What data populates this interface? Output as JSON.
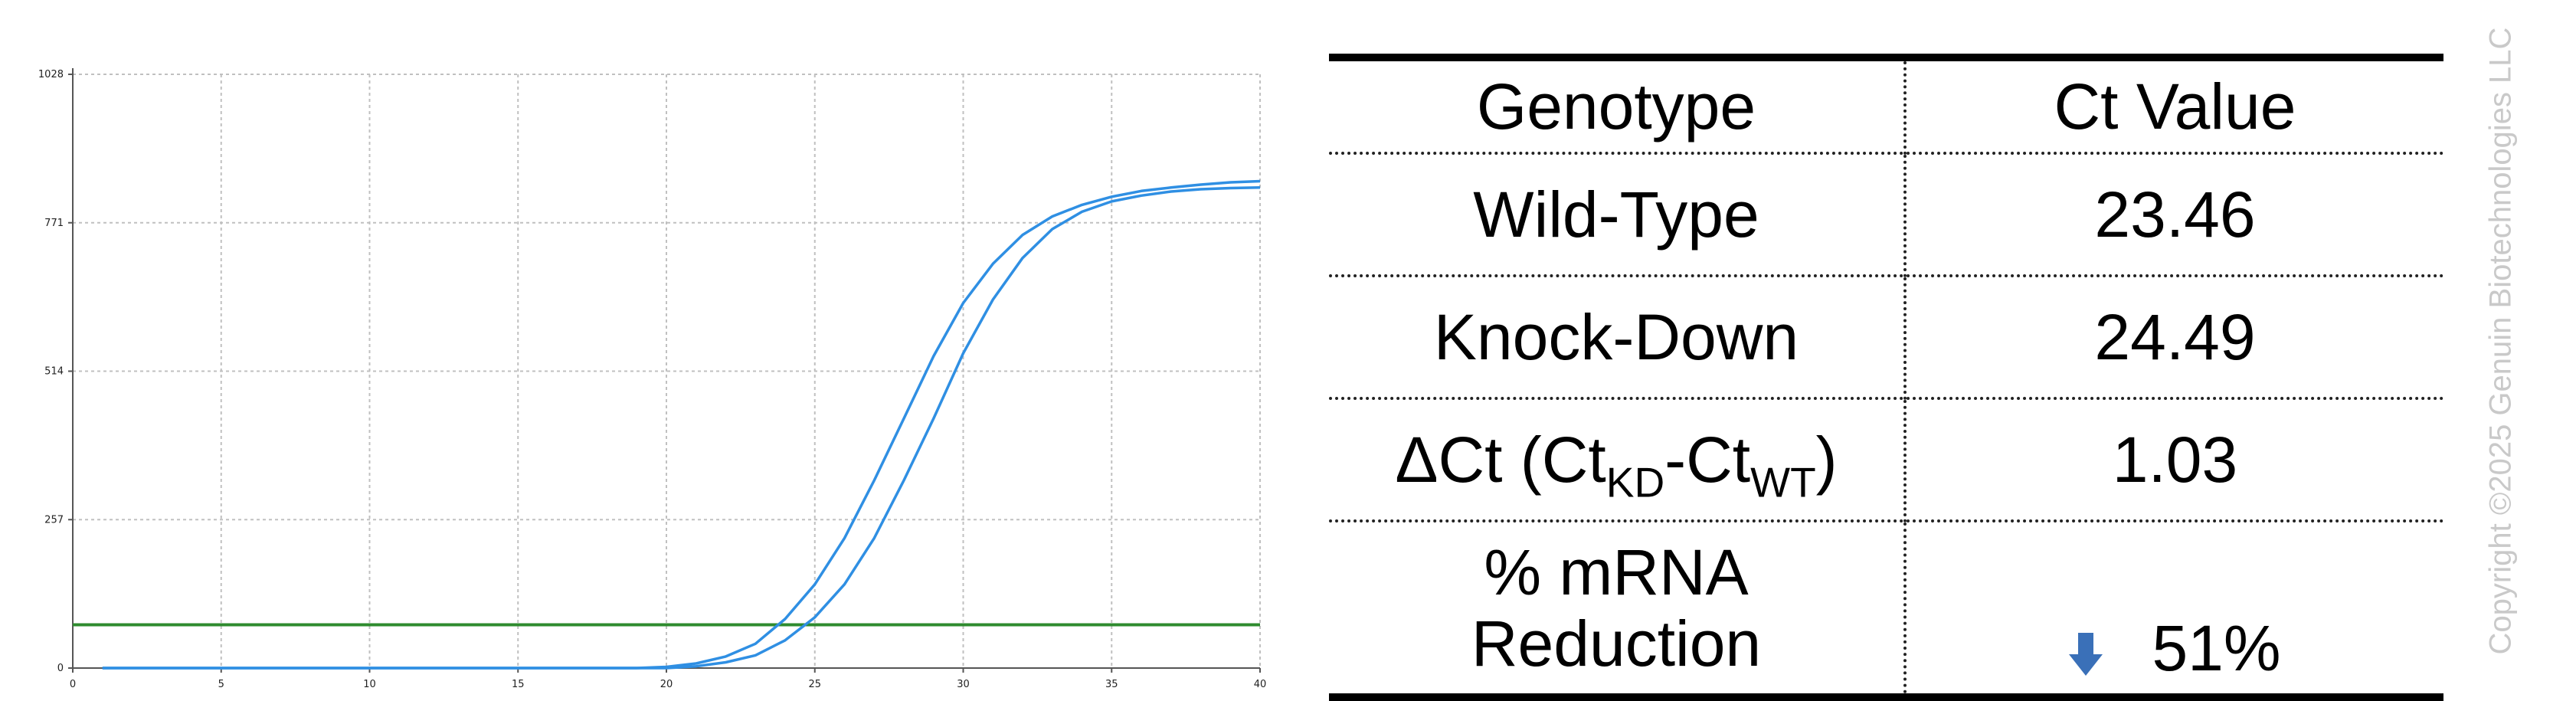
{
  "chart_data": {
    "type": "line",
    "title": "",
    "xlabel": "",
    "ylabel": "",
    "xlim": [
      0,
      40
    ],
    "ylim": [
      0,
      1028
    ],
    "x_ticks": [
      0,
      5,
      10,
      15,
      20,
      25,
      30,
      35,
      40
    ],
    "y_ticks": [
      0,
      257,
      514,
      771,
      1028
    ],
    "grid": true,
    "threshold": 75,
    "series": [
      {
        "color": "#2f8fe3",
        "points": [
          [
            1,
            0
          ],
          [
            19,
            0
          ],
          [
            20,
            2
          ],
          [
            21,
            8
          ],
          [
            22,
            20
          ],
          [
            23,
            42
          ],
          [
            24,
            85
          ],
          [
            25,
            145
          ],
          [
            26,
            225
          ],
          [
            27,
            325
          ],
          [
            28,
            432
          ],
          [
            29,
            540
          ],
          [
            30,
            632
          ],
          [
            31,
            700
          ],
          [
            32,
            750
          ],
          [
            33,
            782
          ],
          [
            34,
            802
          ],
          [
            35,
            816
          ],
          [
            36,
            826
          ],
          [
            37,
            832
          ],
          [
            38,
            837
          ],
          [
            39,
            841
          ],
          [
            40,
            843
          ]
        ]
      },
      {
        "color": "#2f8fe3",
        "points": [
          [
            1,
            0
          ],
          [
            20,
            0
          ],
          [
            21,
            3
          ],
          [
            22,
            10
          ],
          [
            23,
            22
          ],
          [
            24,
            48
          ],
          [
            25,
            88
          ],
          [
            26,
            145
          ],
          [
            27,
            225
          ],
          [
            28,
            325
          ],
          [
            29,
            432
          ],
          [
            30,
            545
          ],
          [
            31,
            638
          ],
          [
            32,
            710
          ],
          [
            33,
            760
          ],
          [
            34,
            790
          ],
          [
            35,
            808
          ],
          [
            36,
            818
          ],
          [
            37,
            825
          ],
          [
            38,
            829
          ],
          [
            39,
            831
          ],
          [
            40,
            832
          ]
        ]
      }
    ]
  },
  "colors": {
    "curve": "#2f8fe3",
    "threshold": "#2e8b2e",
    "grid": "#c0c0c0",
    "arrow": "#3a70b8",
    "copyright": "#c9c9c9"
  },
  "table": {
    "headers": [
      "Genotype",
      "Ct Value"
    ],
    "rows": [
      {
        "label": "Wild-Type",
        "value": "23.46"
      },
      {
        "label": "Knock-Down",
        "value": "24.49"
      }
    ],
    "delta": {
      "prefix": "ΔCt (Ct",
      "sub1": "KD",
      "mid": "-Ct",
      "sub2": "WT",
      "suffix": ")",
      "value": "1.03"
    },
    "reduction": {
      "line1": "% mRNA",
      "line2": "Reduction",
      "icon": "down-arrow-icon",
      "value": "51%"
    }
  },
  "copyright": "Copyright ©2025 Genuin Biotechnologies LLC"
}
